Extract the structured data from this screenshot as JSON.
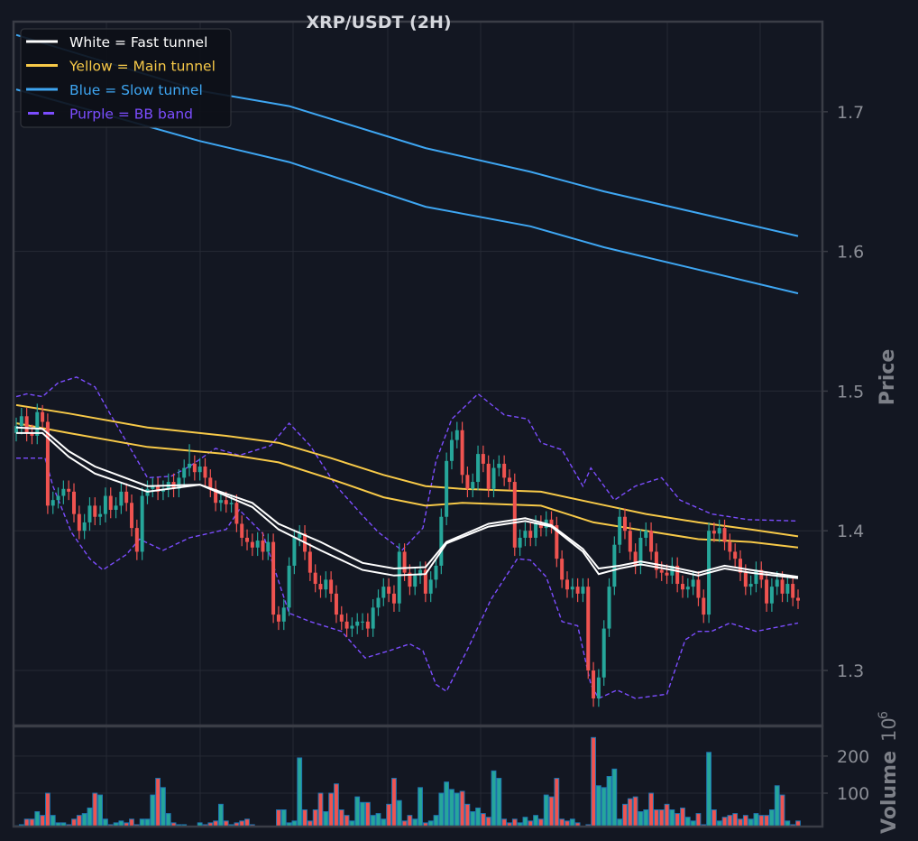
{
  "chart_data": {
    "type": "candlestick",
    "title": "XRP/USDT (2H)",
    "ylabel": "Price",
    "ylim": [
      1.2606,
      1.7645
    ],
    "yticks": [
      "1.3",
      "1.4",
      "1.5",
      "1.6",
      "1.7"
    ],
    "grid": true,
    "legend_position": "top-left",
    "legend": [
      {
        "label": "White = Fast tunnel",
        "color": "#ffffff",
        "style": "solid"
      },
      {
        "label": "Yellow = Main tunnel",
        "color": "#f7c948",
        "style": "solid"
      },
      {
        "label": "Blue = Slow tunnel",
        "color": "#3ea6f2",
        "style": "solid"
      },
      {
        "label": "Purple = BB band",
        "color": "#7c4dff",
        "style": "dashed"
      }
    ],
    "colors": {
      "up": "#26a69a",
      "down": "#ef5350",
      "volume_edge": "#1f77b4",
      "fast": "#ffffff",
      "main": "#f7c948",
      "slow": "#3ea6f2",
      "bb": "#7c4dff"
    },
    "open": [
      1.47,
      1.475,
      1.482,
      1.47,
      1.468,
      1.485,
      1.478,
      1.418,
      1.422,
      1.425,
      1.43,
      1.428,
      1.412,
      1.4,
      1.406,
      1.418,
      1.41,
      1.412,
      1.425,
      1.415,
      1.418,
      1.428,
      1.42,
      1.402,
      1.385,
      1.425,
      1.43,
      1.432,
      1.428,
      1.43,
      1.435,
      1.43,
      1.438,
      1.445,
      1.448,
      1.442,
      1.446,
      1.438,
      1.43,
      1.42,
      1.422,
      1.419,
      1.42,
      1.405,
      1.395,
      1.392,
      1.388,
      1.393,
      1.385,
      1.392,
      1.34,
      1.335,
      1.345,
      1.375,
      1.395,
      1.398,
      1.385,
      1.37,
      1.362,
      1.358,
      1.365,
      1.355,
      1.34,
      1.335,
      1.33,
      1.332,
      1.335,
      1.335,
      1.33,
      1.345,
      1.352,
      1.36,
      1.355,
      1.348,
      1.385,
      1.37,
      1.36,
      1.368,
      1.372,
      1.355,
      1.365,
      1.375,
      1.41,
      1.45,
      1.465,
      1.472,
      1.44,
      1.43,
      1.435,
      1.455,
      1.448,
      1.43,
      1.445,
      1.448,
      1.438,
      1.435,
      1.388,
      1.395,
      1.4,
      1.395,
      1.405,
      1.402,
      1.408,
      1.404,
      1.38,
      1.365,
      1.358,
      1.36,
      1.355,
      1.36,
      1.3,
      1.28,
      1.295,
      1.33,
      1.36,
      1.39,
      1.41,
      1.4,
      1.385,
      1.375,
      1.395,
      1.4,
      1.385,
      1.372,
      1.37,
      1.368,
      1.375,
      1.362,
      1.358,
      1.36,
      1.365,
      1.352,
      1.34,
      1.4,
      1.398,
      1.402,
      1.392,
      1.385,
      1.38,
      1.37,
      1.36,
      1.362,
      1.372,
      1.365,
      1.348,
      1.36,
      1.365,
      1.355,
      1.362,
      1.352
    ],
    "high": [
      1.481,
      1.488,
      1.488,
      1.476,
      1.491,
      1.49,
      1.484,
      1.428,
      1.431,
      1.436,
      1.436,
      1.434,
      1.418,
      1.412,
      1.424,
      1.424,
      1.418,
      1.431,
      1.431,
      1.424,
      1.434,
      1.434,
      1.426,
      1.408,
      1.431,
      1.436,
      1.438,
      1.438,
      1.436,
      1.441,
      1.441,
      1.444,
      1.451,
      1.462,
      1.454,
      1.452,
      1.452,
      1.444,
      1.436,
      1.428,
      1.428,
      1.426,
      1.426,
      1.411,
      1.401,
      1.398,
      1.399,
      1.399,
      1.398,
      1.398,
      1.346,
      1.351,
      1.381,
      1.401,
      1.404,
      1.404,
      1.391,
      1.376,
      1.368,
      1.371,
      1.371,
      1.361,
      1.346,
      1.341,
      1.338,
      1.341,
      1.341,
      1.341,
      1.351,
      1.358,
      1.366,
      1.366,
      1.361,
      1.391,
      1.391,
      1.376,
      1.374,
      1.378,
      1.378,
      1.371,
      1.381,
      1.416,
      1.456,
      1.471,
      1.478,
      1.478,
      1.446,
      1.441,
      1.461,
      1.461,
      1.454,
      1.451,
      1.454,
      1.454,
      1.444,
      1.441,
      1.401,
      1.406,
      1.406,
      1.411,
      1.411,
      1.414,
      1.414,
      1.41,
      1.386,
      1.371,
      1.366,
      1.366,
      1.366,
      1.366,
      1.306,
      1.301,
      1.336,
      1.366,
      1.396,
      1.416,
      1.416,
      1.406,
      1.391,
      1.401,
      1.406,
      1.406,
      1.391,
      1.378,
      1.376,
      1.381,
      1.381,
      1.368,
      1.366,
      1.371,
      1.371,
      1.358,
      1.406,
      1.406,
      1.408,
      1.408,
      1.398,
      1.391,
      1.386,
      1.376,
      1.368,
      1.378,
      1.378,
      1.371,
      1.366,
      1.371,
      1.371,
      1.368,
      1.368,
      1.358
    ],
    "low": [
      1.464,
      1.469,
      1.464,
      1.462,
      1.462,
      1.472,
      1.412,
      1.412,
      1.416,
      1.419,
      1.422,
      1.406,
      1.394,
      1.394,
      1.4,
      1.404,
      1.404,
      1.406,
      1.409,
      1.409,
      1.412,
      1.414,
      1.396,
      1.379,
      1.379,
      1.419,
      1.424,
      1.422,
      1.422,
      1.424,
      1.424,
      1.424,
      1.432,
      1.439,
      1.436,
      1.436,
      1.432,
      1.424,
      1.414,
      1.414,
      1.413,
      1.413,
      1.399,
      1.389,
      1.386,
      1.382,
      1.382,
      1.379,
      1.379,
      1.334,
      1.329,
      1.329,
      1.339,
      1.369,
      1.389,
      1.379,
      1.364,
      1.356,
      1.352,
      1.352,
      1.349,
      1.334,
      1.329,
      1.324,
      1.324,
      1.326,
      1.329,
      1.324,
      1.324,
      1.339,
      1.346,
      1.349,
      1.342,
      1.342,
      1.364,
      1.354,
      1.354,
      1.362,
      1.349,
      1.349,
      1.359,
      1.369,
      1.404,
      1.444,
      1.459,
      1.434,
      1.424,
      1.424,
      1.429,
      1.442,
      1.424,
      1.424,
      1.439,
      1.432,
      1.429,
      1.382,
      1.382,
      1.389,
      1.389,
      1.389,
      1.396,
      1.396,
      1.398,
      1.374,
      1.359,
      1.352,
      1.352,
      1.349,
      1.349,
      1.294,
      1.274,
      1.274,
      1.289,
      1.324,
      1.354,
      1.384,
      1.394,
      1.379,
      1.369,
      1.369,
      1.389,
      1.379,
      1.366,
      1.364,
      1.362,
      1.362,
      1.356,
      1.352,
      1.352,
      1.354,
      1.346,
      1.334,
      1.334,
      1.392,
      1.392,
      1.386,
      1.379,
      1.374,
      1.364,
      1.354,
      1.354,
      1.356,
      1.359,
      1.342,
      1.342,
      1.354,
      1.349,
      1.349,
      1.346,
      1.344
    ],
    "close": [
      1.475,
      1.482,
      1.47,
      1.468,
      1.485,
      1.478,
      1.418,
      1.422,
      1.425,
      1.43,
      1.428,
      1.412,
      1.4,
      1.406,
      1.418,
      1.41,
      1.412,
      1.425,
      1.415,
      1.418,
      1.428,
      1.42,
      1.402,
      1.385,
      1.425,
      1.43,
      1.432,
      1.428,
      1.43,
      1.435,
      1.43,
      1.438,
      1.445,
      1.448,
      1.442,
      1.446,
      1.438,
      1.43,
      1.42,
      1.422,
      1.419,
      1.42,
      1.405,
      1.395,
      1.392,
      1.388,
      1.393,
      1.385,
      1.392,
      1.34,
      1.335,
      1.345,
      1.375,
      1.395,
      1.398,
      1.385,
      1.37,
      1.362,
      1.358,
      1.365,
      1.355,
      1.34,
      1.335,
      1.33,
      1.332,
      1.335,
      1.335,
      1.33,
      1.345,
      1.352,
      1.36,
      1.355,
      1.348,
      1.385,
      1.37,
      1.36,
      1.368,
      1.372,
      1.355,
      1.365,
      1.375,
      1.41,
      1.45,
      1.465,
      1.472,
      1.44,
      1.43,
      1.435,
      1.455,
      1.448,
      1.43,
      1.445,
      1.448,
      1.438,
      1.435,
      1.388,
      1.395,
      1.4,
      1.395,
      1.405,
      1.402,
      1.408,
      1.404,
      1.38,
      1.365,
      1.358,
      1.36,
      1.355,
      1.36,
      1.3,
      1.28,
      1.295,
      1.33,
      1.36,
      1.39,
      1.41,
      1.4,
      1.385,
      1.375,
      1.395,
      1.4,
      1.385,
      1.372,
      1.37,
      1.368,
      1.375,
      1.362,
      1.358,
      1.36,
      1.365,
      1.352,
      1.34,
      1.4,
      1.398,
      1.402,
      1.392,
      1.385,
      1.38,
      1.37,
      1.36,
      1.362,
      1.372,
      1.365,
      1.348,
      1.36,
      1.365,
      1.355,
      1.362,
      1.352,
      1.35
    ],
    "overlays": {
      "fast_upper": [
        [
          0,
          1.474
        ],
        [
          5,
          1.473
        ],
        [
          10,
          1.457
        ],
        [
          15,
          1.446
        ],
        [
          25,
          1.432
        ],
        [
          35,
          1.433
        ],
        [
          45,
          1.42
        ],
        [
          50,
          1.405
        ],
        [
          58,
          1.392
        ],
        [
          66,
          1.377
        ],
        [
          72,
          1.373
        ],
        [
          78,
          1.374
        ],
        [
          82,
          1.392
        ],
        [
          90,
          1.405
        ],
        [
          97,
          1.409
        ],
        [
          102,
          1.404
        ],
        [
          108,
          1.387
        ],
        [
          111,
          1.373
        ],
        [
          115,
          1.375
        ],
        [
          119,
          1.378
        ],
        [
          125,
          1.374
        ],
        [
          130,
          1.37
        ],
        [
          135,
          1.375
        ],
        [
          140,
          1.372
        ],
        [
          149,
          1.367
        ]
      ],
      "fast_lower": [
        [
          0,
          1.47
        ],
        [
          5,
          1.47
        ],
        [
          10,
          1.453
        ],
        [
          15,
          1.441
        ],
        [
          25,
          1.428
        ],
        [
          35,
          1.433
        ],
        [
          45,
          1.417
        ],
        [
          50,
          1.401
        ],
        [
          58,
          1.386
        ],
        [
          66,
          1.372
        ],
        [
          72,
          1.368
        ],
        [
          78,
          1.369
        ],
        [
          82,
          1.391
        ],
        [
          90,
          1.403
        ],
        [
          97,
          1.407
        ],
        [
          102,
          1.403
        ],
        [
          108,
          1.385
        ],
        [
          111,
          1.369
        ],
        [
          115,
          1.373
        ],
        [
          119,
          1.376
        ],
        [
          125,
          1.372
        ],
        [
          130,
          1.368
        ],
        [
          135,
          1.373
        ],
        [
          140,
          1.37
        ],
        [
          149,
          1.366
        ]
      ],
      "main_upper": [
        [
          0,
          1.49
        ],
        [
          10,
          1.484
        ],
        [
          25,
          1.474
        ],
        [
          40,
          1.468
        ],
        [
          50,
          1.463
        ],
        [
          60,
          1.452
        ],
        [
          70,
          1.44
        ],
        [
          78,
          1.432
        ],
        [
          85,
          1.43
        ],
        [
          100,
          1.428
        ],
        [
          110,
          1.42
        ],
        [
          120,
          1.412
        ],
        [
          130,
          1.406
        ],
        [
          140,
          1.401
        ],
        [
          149,
          1.396
        ]
      ],
      "main_lower": [
        [
          0,
          1.477
        ],
        [
          10,
          1.47
        ],
        [
          25,
          1.46
        ],
        [
          40,
          1.455
        ],
        [
          50,
          1.449
        ],
        [
          60,
          1.437
        ],
        [
          70,
          1.424
        ],
        [
          78,
          1.418
        ],
        [
          85,
          1.42
        ],
        [
          100,
          1.418
        ],
        [
          110,
          1.406
        ],
        [
          120,
          1.4
        ],
        [
          130,
          1.394
        ],
        [
          140,
          1.392
        ],
        [
          149,
          1.388
        ]
      ],
      "slow_upper": [
        [
          0,
          1.755
        ],
        [
          35,
          1.715
        ],
        [
          52,
          1.704
        ],
        [
          78,
          1.674
        ],
        [
          98,
          1.657
        ],
        [
          112,
          1.643
        ],
        [
          149,
          1.611
        ]
      ],
      "slow_lower": [
        [
          0,
          1.716
        ],
        [
          35,
          1.679
        ],
        [
          52,
          1.664
        ],
        [
          78,
          1.632
        ],
        [
          98,
          1.618
        ],
        [
          112,
          1.603
        ],
        [
          149,
          1.57
        ]
      ],
      "bb_upper": [
        [
          0,
          1.496
        ],
        [
          2,
          1.498
        ],
        [
          5,
          1.496
        ],
        [
          8,
          1.506
        ],
        [
          11.5,
          1.51
        ],
        [
          15,
          1.503
        ],
        [
          18,
          1.483
        ],
        [
          23,
          1.451
        ],
        [
          25,
          1.438
        ],
        [
          29.5,
          1.439
        ],
        [
          33,
          1.446
        ],
        [
          38,
          1.459
        ],
        [
          42.5,
          1.454
        ],
        [
          48.5,
          1.461
        ],
        [
          52,
          1.477
        ],
        [
          56,
          1.461
        ],
        [
          61,
          1.432
        ],
        [
          66,
          1.411
        ],
        [
          69,
          1.399
        ],
        [
          73.5,
          1.386
        ],
        [
          77.5,
          1.402
        ],
        [
          80,
          1.45
        ],
        [
          83,
          1.48
        ],
        [
          88,
          1.498
        ],
        [
          93,
          1.483
        ],
        [
          97.5,
          1.48
        ],
        [
          100,
          1.463
        ],
        [
          104,
          1.458
        ],
        [
          108,
          1.432
        ],
        [
          109.5,
          1.445
        ],
        [
          114,
          1.422
        ],
        [
          118,
          1.432
        ],
        [
          123,
          1.438
        ],
        [
          126.5,
          1.422
        ],
        [
          132.5,
          1.412
        ],
        [
          139.5,
          1.408
        ],
        [
          149,
          1.407
        ]
      ],
      "bb_lower": [
        [
          0,
          1.452
        ],
        [
          5.5,
          1.452
        ],
        [
          7,
          1.432
        ],
        [
          10.5,
          1.399
        ],
        [
          14,
          1.38
        ],
        [
          16.5,
          1.372
        ],
        [
          21,
          1.383
        ],
        [
          23.5,
          1.394
        ],
        [
          28,
          1.386
        ],
        [
          33,
          1.395
        ],
        [
          40,
          1.401
        ],
        [
          42.5,
          1.415
        ],
        [
          47,
          1.398
        ],
        [
          52,
          1.341
        ],
        [
          56,
          1.335
        ],
        [
          62,
          1.328
        ],
        [
          66.5,
          1.309
        ],
        [
          71,
          1.314
        ],
        [
          75,
          1.319
        ],
        [
          77.5,
          1.314
        ],
        [
          80,
          1.29
        ],
        [
          82,
          1.285
        ],
        [
          86,
          1.315
        ],
        [
          90.5,
          1.351
        ],
        [
          95.5,
          1.38
        ],
        [
          98,
          1.379
        ],
        [
          101,
          1.367
        ],
        [
          104,
          1.335
        ],
        [
          107,
          1.332
        ],
        [
          109.5,
          1.29
        ],
        [
          111,
          1.28
        ],
        [
          114.5,
          1.286
        ],
        [
          118,
          1.28
        ],
        [
          124,
          1.283
        ],
        [
          127.5,
          1.322
        ],
        [
          130,
          1.328
        ],
        [
          132.5,
          1.328
        ],
        [
          136,
          1.334
        ],
        [
          141,
          1.328
        ],
        [
          149,
          1.334
        ]
      ]
    },
    "volume": {
      "ylabel": "Volume",
      "unit_exponent": "6",
      "unit_base": "10",
      "ylim": [
        10,
        280
      ],
      "yticks": [
        "100",
        "200"
      ],
      "values": [
        12,
        15,
        30,
        30,
        50,
        40,
        100,
        40,
        20,
        20,
        15,
        30,
        40,
        45,
        60,
        100,
        95,
        30,
        15,
        20,
        25,
        20,
        30,
        15,
        30,
        30,
        95,
        140,
        115,
        45,
        20,
        15,
        15,
        10,
        10,
        20,
        15,
        20,
        25,
        70,
        25,
        15,
        20,
        25,
        30,
        15,
        10,
        10,
        10,
        10,
        55,
        55,
        20,
        25,
        195,
        55,
        25,
        55,
        100,
        50,
        100,
        125,
        55,
        40,
        25,
        90,
        75,
        75,
        40,
        45,
        30,
        70,
        140,
        80,
        25,
        40,
        30,
        115,
        20,
        25,
        40,
        100,
        130,
        110,
        100,
        105,
        70,
        50,
        60,
        45,
        35,
        160,
        140,
        30,
        20,
        30,
        20,
        35,
        25,
        40,
        30,
        95,
        90,
        140,
        30,
        25,
        30,
        20,
        10,
        15,
        250,
        120,
        115,
        145,
        165,
        30,
        70,
        85,
        90,
        50,
        55,
        100,
        55,
        55,
        70,
        55,
        45,
        60,
        35,
        25,
        45,
        15,
        210,
        55,
        25,
        35,
        40,
        45,
        30,
        40,
        30,
        45,
        40,
        40,
        55,
        120,
        95,
        25,
        15,
        25
      ]
    }
  }
}
